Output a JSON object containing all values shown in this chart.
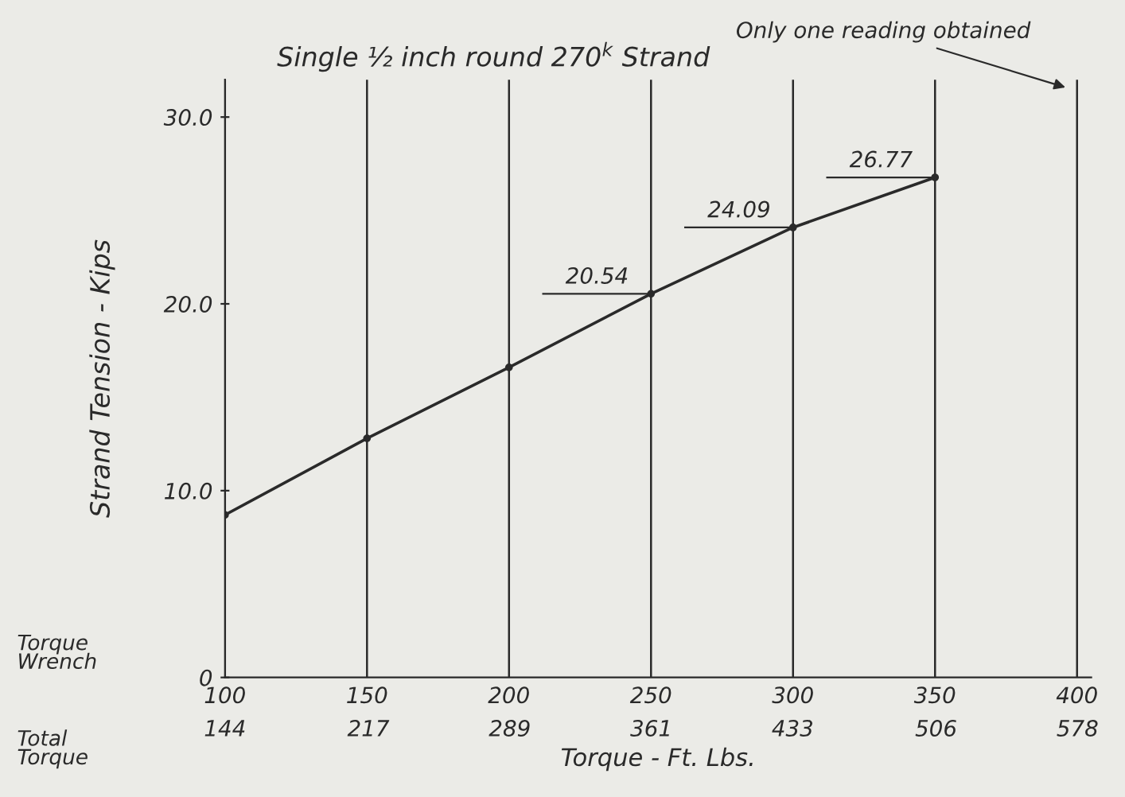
{
  "chart_data": {
    "type": "line",
    "title": "Single ½ inch round 270$^{k}$ Strand",
    "xlabel": "Torque - Ft. Lbs.",
    "ylabel": "Strand Tension - Kips",
    "x": [
      100,
      150,
      200,
      250,
      300,
      350
    ],
    "series": [
      {
        "color": "#2a2a2a",
        "values": [
          8.7,
          12.8,
          16.6,
          20.54,
          24.09,
          26.77
        ],
        "value_labels": [
          null,
          null,
          null,
          "20.54",
          "24.09",
          "26.77"
        ]
      }
    ],
    "xlim": [
      100,
      405
    ],
    "ylim": [
      0,
      32
    ],
    "xticks": [
      100,
      150,
      200,
      250,
      300,
      350,
      400
    ],
    "x2lim": [
      144,
      585
    ],
    "x2ticks": [
      144,
      217,
      289,
      361,
      433,
      506,
      578
    ],
    "yticks": [
      0,
      {
        "value": 10,
        "label": "10.0"
      },
      {
        "value": 20,
        "label": "20.0"
      },
      {
        "value": 30,
        "label": "30.0"
      }
    ],
    "grid": "x",
    "marker": "circle",
    "line_style": "solid",
    "legend": false,
    "annotations": [
      "Only one reading obtained",
      "Torque\nWrench",
      "Total\nTorque"
    ]
  }
}
